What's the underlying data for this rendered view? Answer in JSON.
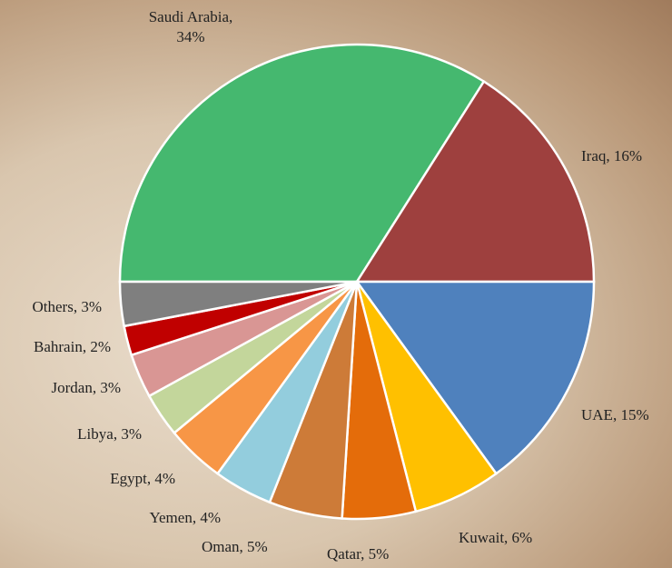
{
  "chart_data": {
    "type": "pie",
    "values": [
      34,
      16,
      15,
      6,
      5,
      5,
      4,
      4,
      3,
      3,
      2,
      3
    ],
    "value_labels": [
      "Saudi Arabia, 34%",
      "Iraq, 16%",
      "UAE, 15%",
      "Kuwait, 6%",
      "Qatar, 5%",
      "Oman, 5%",
      "Yemen, 4%",
      "Egypt, 4%",
      "Libya, 3%",
      "Jordan, 3%",
      "Bahrain, 2%",
      "Others, 3%"
    ],
    "colors": [
      "#45b86f",
      "#9e403e",
      "#4f81bd",
      "#ffc000",
      "#e46c0a",
      "#cd7b38",
      "#93cddd",
      "#f79646",
      "#c3d69b",
      "#d99694",
      "#c00000",
      "#7f7f7f"
    ]
  }
}
